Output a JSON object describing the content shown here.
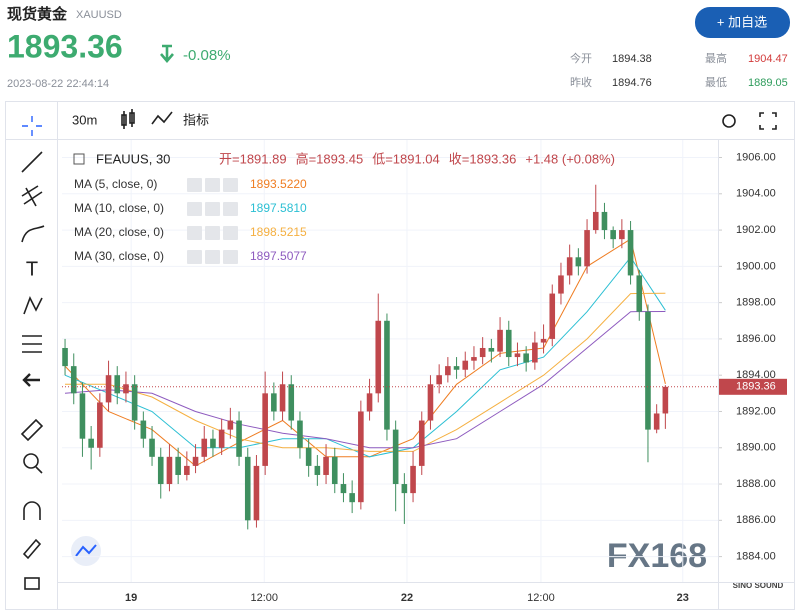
{
  "header": {
    "title": "现货黄金",
    "symbol": "XAUUSD",
    "price": "1893.36",
    "change": "-0.08%",
    "timestamp": "2023-08-22 22:44:14",
    "button": "+ 加自选",
    "stats": [
      [
        "今开",
        "1894.38"
      ],
      [
        "最高",
        "1904.47"
      ],
      [
        "昨收",
        "1894.76"
      ],
      [
        "最低",
        "1889.05"
      ]
    ]
  },
  "toolbar": {
    "interval": "30m",
    "indicators": "指标"
  },
  "watermark": "FX168",
  "logo": "SINO SOUND",
  "chart_data": {
    "type": "candlestick",
    "legend": {
      "symbol": "FEAUUS, 30",
      "open": "开=1891.89",
      "high": "高=1893.45",
      "low": "低=1891.04",
      "close": "收=1893.36",
      "change": "+1.48 (+0.08%)"
    },
    "up_color": "#c0474c",
    "down_color": "#3f8f5f",
    "open": [
      1895.5,
      1894.5,
      1893.0,
      1890.5,
      1890.0,
      1892.5,
      1894.0,
      1893.0,
      1893.5,
      1891.5,
      1890.5,
      1889.5,
      1888.0,
      1889.5,
      1888.5,
      1889.0,
      1889.5,
      1890.5,
      1890.0,
      1891.0,
      1891.5,
      1889.5,
      1886.0,
      1889.0,
      1893.0,
      1892.0,
      1893.5,
      1891.5,
      1890.0,
      1889.0,
      1888.5,
      1889.5,
      1888.0,
      1887.5,
      1887.0,
      1892.0,
      1893.0,
      1897.0,
      1891.0,
      1888.0,
      1887.5,
      1889.0,
      1891.5,
      1893.5,
      1894.0,
      1894.5,
      1894.3,
      1894.8,
      1895.0,
      1895.5,
      1895.3,
      1896.5,
      1895.0,
      1895.2,
      1894.7,
      1895.8,
      1896.0,
      1898.5,
      1899.5,
      1900.5,
      1900.0,
      1902.0,
      1903.0,
      1902.0,
      1901.5,
      1902.0,
      1899.5,
      1897.5,
      1891.0,
      1891.89
    ],
    "high": [
      1896.0,
      1895.2,
      1893.6,
      1891.2,
      1893.0,
      1894.8,
      1894.5,
      1894.2,
      1894.0,
      1892.0,
      1891.2,
      1890.0,
      1890.2,
      1890.0,
      1889.8,
      1890.2,
      1891.2,
      1891.0,
      1891.6,
      1892.2,
      1892.0,
      1890.0,
      1889.6,
      1894.2,
      1893.6,
      1894.2,
      1894.0,
      1892.0,
      1890.5,
      1889.6,
      1890.2,
      1890.0,
      1888.6,
      1888.2,
      1892.6,
      1893.8,
      1898.5,
      1897.4,
      1891.5,
      1888.6,
      1889.8,
      1892.0,
      1894.0,
      1894.6,
      1895.0,
      1895.0,
      1895.3,
      1895.6,
      1896.1,
      1896.0,
      1897.2,
      1897.0,
      1895.8,
      1895.6,
      1896.4,
      1896.8,
      1899.0,
      1900.2,
      1901.2,
      1901.0,
      1902.6,
      1904.5,
      1903.5,
      1902.2,
      1902.6,
      1902.5,
      1899.8,
      1897.9,
      1892.4,
      1893.45
    ],
    "low": [
      1894.0,
      1892.4,
      1889.5,
      1888.8,
      1889.5,
      1892.0,
      1892.4,
      1892.5,
      1891.0,
      1890.0,
      1889.0,
      1887.2,
      1887.6,
      1888.0,
      1888.2,
      1888.6,
      1889.2,
      1889.5,
      1889.6,
      1890.5,
      1889.0,
      1885.5,
      1885.6,
      1888.5,
      1891.5,
      1891.5,
      1891.0,
      1889.4,
      1888.4,
      1887.9,
      1888.0,
      1887.5,
      1887.0,
      1886.4,
      1886.6,
      1891.5,
      1892.5,
      1890.4,
      1886.5,
      1885.8,
      1887.0,
      1888.5,
      1891.0,
      1893.0,
      1893.6,
      1893.8,
      1893.9,
      1894.3,
      1894.6,
      1894.7,
      1895.0,
      1894.5,
      1894.5,
      1894.2,
      1894.3,
      1895.2,
      1895.6,
      1897.9,
      1899.0,
      1899.5,
      1899.6,
      1901.8,
      1901.5,
      1901.0,
      1901.0,
      1899.0,
      1897.0,
      1889.2,
      1890.8,
      1891.04
    ],
    "close": [
      1894.5,
      1893.0,
      1890.5,
      1890.0,
      1892.5,
      1894.0,
      1893.0,
      1893.5,
      1891.5,
      1890.5,
      1889.5,
      1888.0,
      1889.5,
      1888.5,
      1889.0,
      1889.5,
      1890.5,
      1890.0,
      1891.0,
      1891.5,
      1889.5,
      1886.0,
      1889.0,
      1893.0,
      1892.0,
      1893.5,
      1891.5,
      1890.0,
      1889.0,
      1888.5,
      1889.5,
      1888.0,
      1887.5,
      1887.0,
      1892.0,
      1893.0,
      1897.0,
      1891.0,
      1888.0,
      1887.5,
      1889.0,
      1891.5,
      1893.5,
      1894.0,
      1894.5,
      1894.3,
      1894.8,
      1895.0,
      1895.5,
      1895.3,
      1896.5,
      1895.0,
      1895.2,
      1894.7,
      1895.8,
      1896.0,
      1898.5,
      1899.5,
      1900.5,
      1900.0,
      1902.0,
      1903.0,
      1902.0,
      1901.5,
      1902.0,
      1899.5,
      1897.5,
      1891.0,
      1891.89,
      1893.36
    ],
    "series": [
      {
        "name": "MA (5, close, 0)",
        "color": "#ef7d22",
        "legend_value": "1893.5220",
        "x": [
          0,
          5,
          10,
          15,
          20,
          25,
          30,
          35,
          40,
          45,
          50,
          55,
          60,
          65,
          69
        ],
        "values": [
          1894.5,
          1892,
          1891,
          1889,
          1890.3,
          1891.5,
          1889.5,
          1889.5,
          1890.5,
          1893.5,
          1895.2,
          1895.5,
          1900,
          1901.5,
          1893.52
        ]
      },
      {
        "name": "MA (10, close, 0)",
        "color": "#2bbfd3",
        "legend_value": "1897.5810",
        "x": [
          0,
          5,
          10,
          15,
          20,
          25,
          30,
          35,
          40,
          45,
          50,
          55,
          60,
          65,
          69
        ],
        "values": [
          1894,
          1893,
          1892,
          1890,
          1890,
          1890.5,
          1890.5,
          1889.5,
          1890,
          1892,
          1894.3,
          1895,
          1897.5,
          1900.5,
          1897.58
        ]
      },
      {
        "name": "MA (20, close, 0)",
        "color": "#f5b041",
        "legend_value": "1898.5215",
        "x": [
          0,
          5,
          10,
          15,
          20,
          25,
          30,
          35,
          40,
          45,
          50,
          55,
          60,
          65,
          69
        ],
        "values": [
          1893.5,
          1893.5,
          1892.8,
          1891.5,
          1890.5,
          1890,
          1890,
          1889.8,
          1889.8,
          1891,
          1892.5,
          1894,
          1896,
          1898.5,
          1898.52
        ]
      },
      {
        "name": "MA (30, close, 0)",
        "color": "#8e5bbf",
        "legend_value": "1897.5077",
        "x": [
          0,
          5,
          10,
          15,
          20,
          25,
          30,
          35,
          40,
          45,
          50,
          55,
          60,
          65,
          69
        ],
        "values": [
          1893,
          1893.2,
          1893,
          1892,
          1891.3,
          1890.8,
          1890.5,
          1890,
          1890,
          1890.5,
          1892,
          1893.5,
          1895.5,
          1897.5,
          1897.51
        ]
      }
    ],
    "last_price": {
      "value": 1893.36,
      "label": "1893.36"
    },
    "xlim": [
      -0.35,
      75.05
    ],
    "xticks": [
      {
        "value": 7.6,
        "label": "19"
      },
      {
        "value": 22.9,
        "label": "12:00"
      },
      {
        "value": 39.3,
        "label": "22"
      },
      {
        "value": 54.7,
        "label": "12:00"
      },
      {
        "value": 71,
        "label": "23"
      }
    ],
    "ylim": [
      1882.6,
      1906.8
    ],
    "yticks": [
      {
        "value": 1884,
        "label": "1884.00"
      },
      {
        "value": 1886,
        "label": "1886.00"
      },
      {
        "value": 1888,
        "label": "1888.00"
      },
      {
        "value": 1890,
        "label": "1890.00"
      },
      {
        "value": 1892,
        "label": "1892.00"
      },
      {
        "value": 1894,
        "label": "1894.00"
      },
      {
        "value": 1896,
        "label": "1896.00"
      },
      {
        "value": 1898,
        "label": "1898.00"
      },
      {
        "value": 1900,
        "label": "1900.00"
      },
      {
        "value": 1902,
        "label": "1902.00"
      },
      {
        "value": 1904,
        "label": "1904.00"
      },
      {
        "value": 1906,
        "label": "1906.00"
      }
    ],
    "grid": true
  }
}
